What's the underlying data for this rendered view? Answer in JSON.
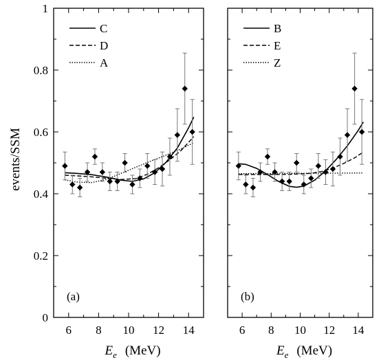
{
  "y_axis_label": "events/SSM",
  "chart_data": [
    {
      "type": "scatter",
      "panel_label": "(a)",
      "xlabel": "E_e (MeV)",
      "xlabel_parts": {
        "var": "E",
        "sub": "e",
        "unit": "(MeV)"
      },
      "ylabel": "events/SSM",
      "xlim": [
        5,
        15
      ],
      "ylim": [
        0,
        1
      ],
      "xticks": [
        "6",
        "8",
        "10",
        "12",
        "14"
      ],
      "yticks": [
        "0",
        "0.2",
        "0.4",
        "0.6",
        "0.8",
        "1"
      ],
      "grid": false,
      "legend_position": "top-left",
      "data": {
        "x": [
          5.75,
          6.25,
          6.75,
          7.25,
          7.75,
          8.25,
          8.75,
          9.25,
          9.75,
          10.25,
          10.75,
          11.25,
          11.75,
          12.25,
          12.75,
          13.25,
          13.75,
          14.25
        ],
        "y": [
          0.49,
          0.43,
          0.42,
          0.47,
          0.52,
          0.47,
          0.44,
          0.44,
          0.5,
          0.43,
          0.45,
          0.49,
          0.47,
          0.48,
          0.52,
          0.59,
          0.74,
          0.6
        ],
        "err": [
          0.045,
          0.03,
          0.03,
          0.03,
          0.025,
          0.03,
          0.03,
          0.03,
          0.03,
          0.03,
          0.03,
          0.04,
          0.04,
          0.055,
          0.06,
          0.085,
          0.115,
          0.105
        ]
      },
      "series": [
        {
          "name": "C",
          "style": "solid",
          "x": [
            5.75,
            6.5,
            7.5,
            8.5,
            9.5,
            10.25,
            11,
            11.75,
            12.5,
            13.25,
            14,
            14.35
          ],
          "y": [
            0.468,
            0.466,
            0.462,
            0.454,
            0.444,
            0.44,
            0.448,
            0.468,
            0.502,
            0.548,
            0.613,
            0.648
          ]
        },
        {
          "name": "D",
          "style": "dashed",
          "x": [
            5.75,
            6.5,
            7.5,
            8.5,
            9.5,
            10.5,
            11.25,
            12,
            12.75,
            13.5,
            14.35
          ],
          "y": [
            0.46,
            0.458,
            0.455,
            0.45,
            0.446,
            0.449,
            0.463,
            0.484,
            0.51,
            0.54,
            0.585
          ]
        },
        {
          "name": "A",
          "style": "dotted",
          "x": [
            5.75,
            6.5,
            7.5,
            8.5,
            9.5,
            10.5,
            11.5,
            12.5,
            13.5,
            14.35
          ],
          "y": [
            0.445,
            0.438,
            0.436,
            0.446,
            0.466,
            0.486,
            0.506,
            0.525,
            0.545,
            0.565
          ]
        }
      ]
    },
    {
      "type": "scatter",
      "panel_label": "(b)",
      "xlabel": "E_e (MeV)",
      "xlabel_parts": {
        "var": "E",
        "sub": "e",
        "unit": "(MeV)"
      },
      "ylabel": "",
      "xlim": [
        5,
        15
      ],
      "ylim": [
        0,
        1
      ],
      "xticks": [
        "6",
        "8",
        "10",
        "12",
        "14"
      ],
      "yticks": [],
      "grid": false,
      "legend_position": "top-left",
      "data": {
        "x": [
          5.75,
          6.25,
          6.75,
          7.25,
          7.75,
          8.25,
          8.75,
          9.25,
          9.75,
          10.25,
          10.75,
          11.25,
          11.75,
          12.25,
          12.75,
          13.25,
          13.75,
          14.25
        ],
        "y": [
          0.49,
          0.43,
          0.42,
          0.47,
          0.52,
          0.47,
          0.44,
          0.44,
          0.5,
          0.43,
          0.45,
          0.49,
          0.47,
          0.48,
          0.52,
          0.59,
          0.74,
          0.6
        ],
        "err": [
          0.045,
          0.03,
          0.03,
          0.03,
          0.025,
          0.03,
          0.03,
          0.03,
          0.03,
          0.03,
          0.03,
          0.04,
          0.04,
          0.055,
          0.06,
          0.085,
          0.115,
          0.105
        ]
      },
      "series": [
        {
          "name": "B",
          "style": "solid",
          "x": [
            5.75,
            6.25,
            7,
            7.75,
            8.5,
            9.25,
            9.75,
            10.25,
            11,
            11.75,
            12.5,
            13.25,
            14,
            14.35
          ],
          "y": [
            0.497,
            0.495,
            0.482,
            0.462,
            0.44,
            0.424,
            0.421,
            0.425,
            0.444,
            0.474,
            0.512,
            0.555,
            0.605,
            0.632
          ]
        },
        {
          "name": "E",
          "style": "dashed",
          "x": [
            5.75,
            7,
            8.25,
            9.5,
            10.75,
            11.5,
            12.25,
            13,
            13.75,
            14.35
          ],
          "y": [
            0.462,
            0.462,
            0.462,
            0.463,
            0.466,
            0.472,
            0.483,
            0.498,
            0.516,
            0.535
          ]
        },
        {
          "name": "Z",
          "style": "dotted",
          "x": [
            5.75,
            14.35
          ],
          "y": [
            0.465,
            0.467
          ]
        }
      ]
    }
  ]
}
